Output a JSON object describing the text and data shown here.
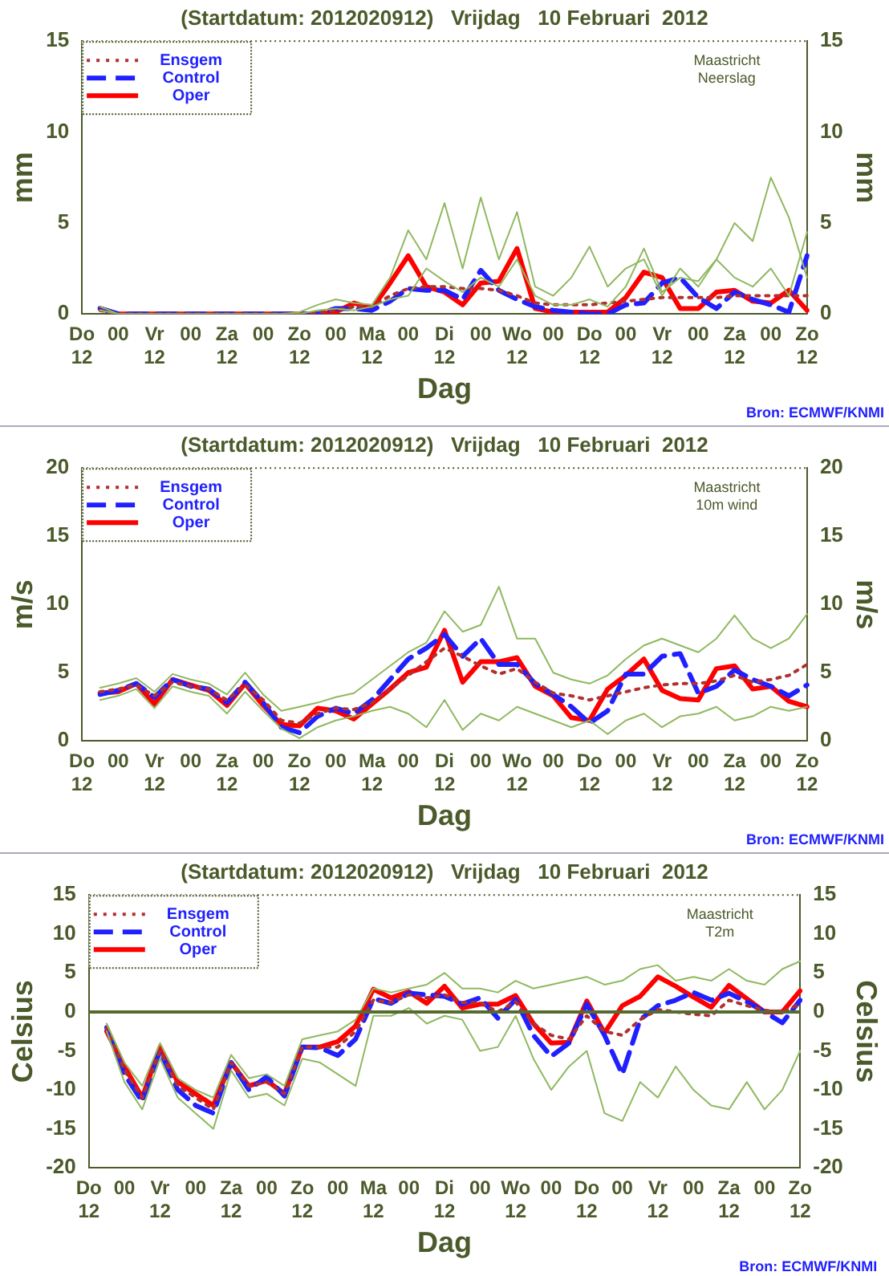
{
  "chart_data": [
    {
      "type": "line",
      "title": "(Startdatum: 2012020912)   Vrijdag   10 Februari  2012",
      "xlabel": "Dag",
      "ylabel": "mm",
      "y2label": "mm",
      "legend": "top left",
      "marker": "none",
      "annotations": [
        "Maastricht\nNeerslag",
        "Bron: ECMWF/KNMI"
      ],
      "categories": [
        "Do\n12",
        null,
        "00",
        null,
        "Vr\n12",
        null,
        "00",
        null,
        "Za\n12",
        null,
        "00",
        null,
        "Zo\n12",
        null,
        "00",
        null,
        "Ma\n12",
        null,
        "00",
        null,
        "Di\n12",
        null,
        "00",
        null,
        "Wo\n12",
        null,
        "00",
        null,
        "Do\n12",
        null,
        "00",
        null,
        "Vr\n12",
        null,
        "00",
        null,
        "Za\n12",
        null,
        "00",
        null,
        "Zo\n12"
      ],
      "ylim": [
        0,
        15
      ],
      "yticks": [
        0,
        5,
        10,
        15
      ],
      "y2lim": [
        0,
        15
      ],
      "y2ticks": [
        0,
        5,
        10,
        15
      ],
      "series": [
        {
          "color": "#90b860",
          "line_style": "solid",
          "values": [
            null,
            0.4,
            0,
            0,
            0,
            0,
            0,
            0,
            0,
            0,
            0,
            0,
            0.1,
            0.5,
            0.8,
            0.6,
            0.5,
            2.0,
            4.6,
            3.0,
            6.1,
            2.5,
            6.4,
            3.0,
            5.6,
            1.5,
            1.0,
            2.0,
            3.7,
            1.5,
            2.5,
            3.0,
            1.0,
            2.5,
            1.5,
            3.0,
            2.0,
            1.5,
            2.5,
            1.0,
            4.5
          ]
        },
        {
          "color": "#90b860",
          "line_style": "solid",
          "values": [
            null,
            0.2,
            0,
            0,
            0,
            0,
            0,
            0,
            0,
            0,
            0,
            0,
            0,
            0.2,
            0.3,
            0.2,
            0.4,
            0.8,
            1.0,
            2.5,
            1.8,
            1.2,
            2.0,
            1.5,
            3.0,
            1.0,
            0.5,
            0.5,
            0.8,
            0.4,
            1.5,
            3.6,
            1.2,
            2.0,
            1.8,
            3.0,
            5.0,
            4.0,
            7.5,
            5.3,
            2.0
          ]
        },
        {
          "name": "Ensgem",
          "color": "#b03030",
          "line_style": "dotted",
          "values": [
            null,
            0.2,
            0,
            0,
            0,
            0,
            0,
            0,
            0,
            0,
            0,
            0,
            0,
            0.1,
            0.2,
            0.4,
            0.4,
            1.0,
            1.4,
            1.5,
            1.5,
            1.4,
            1.4,
            1.3,
            1.0,
            0.6,
            0.5,
            0.5,
            0.5,
            0.6,
            0.7,
            0.8,
            0.9,
            0.9,
            0.9,
            0.9,
            1.0,
            1.0,
            1.0,
            1.0,
            1.0
          ]
        },
        {
          "name": "Control",
          "color": "#2020ff",
          "line_style": "dashed",
          "values": [
            null,
            0.3,
            0,
            0,
            0,
            0,
            0,
            0,
            0,
            0,
            0,
            0,
            0,
            0,
            0.3,
            0.3,
            0.2,
            0.7,
            1.4,
            1.3,
            1.3,
            0.8,
            2.4,
            1.3,
            0.8,
            0.4,
            0.2,
            0.1,
            0,
            0,
            0.5,
            0.6,
            1.7,
            2.0,
            0.9,
            0.3,
            1.2,
            0.8,
            0.5,
            0.1,
            3.2
          ]
        },
        {
          "name": "Oper",
          "color": "#ff0000",
          "line_style": "solid",
          "values": [
            null,
            0.3,
            0,
            0,
            0,
            0,
            0,
            0,
            0,
            0,
            0,
            0,
            0,
            0,
            0.1,
            0.6,
            0.3,
            1.7,
            3.2,
            1.5,
            1.2,
            0.5,
            1.7,
            1.8,
            3.6,
            0.3,
            0.1,
            0.1,
            0.1,
            0.1,
            0.9,
            2.3,
            2.0,
            0.3,
            0.3,
            1.2,
            1.3,
            0.7,
            0.6,
            1.3,
            0.2
          ]
        }
      ]
    },
    {
      "type": "line",
      "title": "(Startdatum: 2012020912)   Vrijdag   10 Februari  2012",
      "xlabel": "Dag",
      "ylabel": "m/s",
      "y2label": "m/s",
      "legend": "top left",
      "marker": "none",
      "annotations": [
        "Maastricht\n10m wind",
        "Bron: ECMWF/KNMI"
      ],
      "categories": [
        "Do\n12",
        null,
        "00",
        null,
        "Vr\n12",
        null,
        "00",
        null,
        "Za\n12",
        null,
        "00",
        null,
        "Zo\n12",
        null,
        "00",
        null,
        "Ma\n12",
        null,
        "00",
        null,
        "Di\n12",
        null,
        "00",
        null,
        "Wo\n12",
        null,
        "00",
        null,
        "Do\n12",
        null,
        "00",
        null,
        "Vr\n12",
        null,
        "00",
        null,
        "Za\n12",
        null,
        "00",
        null,
        "Zo\n12"
      ],
      "ylim": [
        0,
        20
      ],
      "yticks": [
        0,
        5,
        10,
        15,
        20
      ],
      "y2lim": [
        0,
        20
      ],
      "y2ticks": [
        0,
        5,
        10,
        15,
        20
      ],
      "series": [
        {
          "color": "#90b860",
          "line_style": "solid",
          "values": [
            null,
            3.9,
            4.2,
            4.6,
            3.6,
            4.9,
            4.5,
            4.2,
            3.4,
            5.0,
            3.4,
            2.2,
            2.5,
            2.8,
            3.2,
            3.5,
            4.5,
            5.5,
            6.5,
            7.2,
            9.5,
            8.0,
            8.5,
            11.3,
            7.5,
            7.5,
            5.0,
            4.5,
            4.2,
            4.8,
            6.0,
            7.0,
            7.5,
            7.0,
            6.5,
            7.5,
            9.2,
            7.5,
            6.8,
            7.5,
            9.3
          ]
        },
        {
          "color": "#90b860",
          "line_style": "solid",
          "values": [
            null,
            3.0,
            3.3,
            3.8,
            2.4,
            4.0,
            3.6,
            3.3,
            2.0,
            3.6,
            2.2,
            0.9,
            0.2,
            1.0,
            1.5,
            1.8,
            2.2,
            2.5,
            2.0,
            1.0,
            3.0,
            0.8,
            2.0,
            1.5,
            2.5,
            2.0,
            1.5,
            1.0,
            1.5,
            0.5,
            1.5,
            2.0,
            1.0,
            1.8,
            2.0,
            2.5,
            1.5,
            1.8,
            2.5,
            2.2,
            2.5
          ]
        },
        {
          "name": "Ensgem",
          "color": "#b03030",
          "line_style": "dotted",
          "values": [
            null,
            3.6,
            3.8,
            4.1,
            3.3,
            4.3,
            4.0,
            3.8,
            3.0,
            4.1,
            3.0,
            1.5,
            1.3,
            2.0,
            2.4,
            2.3,
            2.8,
            3.8,
            4.8,
            5.8,
            6.8,
            6.2,
            5.5,
            4.9,
            5.3,
            4.3,
            3.5,
            3.3,
            3.0,
            3.3,
            3.6,
            3.9,
            4.1,
            4.2,
            4.2,
            4.4,
            4.8,
            4.3,
            4.5,
            4.8,
            5.6
          ]
        },
        {
          "name": "Control",
          "color": "#2020ff",
          "line_style": "dashed",
          "values": [
            null,
            3.4,
            3.7,
            4.2,
            3.2,
            4.5,
            4.0,
            3.8,
            2.8,
            4.3,
            2.8,
            1.0,
            0.6,
            1.8,
            2.4,
            2.0,
            3.0,
            4.5,
            6.0,
            6.8,
            7.8,
            6.2,
            7.5,
            5.6,
            5.6,
            4.2,
            3.4,
            2.5,
            1.3,
            2.2,
            4.9,
            4.9,
            6.2,
            6.4,
            3.5,
            4.0,
            5.2,
            4.5,
            4.0,
            3.3,
            4.1
          ]
        },
        {
          "name": "Oper",
          "color": "#ff0000",
          "line_style": "solid",
          "values": [
            null,
            3.5,
            3.6,
            4.2,
            2.7,
            4.5,
            4.1,
            3.7,
            2.6,
            4.2,
            2.6,
            1.2,
            1.1,
            2.4,
            2.2,
            1.6,
            2.7,
            3.8,
            5.0,
            5.4,
            8.1,
            4.3,
            5.8,
            5.8,
            6.1,
            4.0,
            3.3,
            1.7,
            1.5,
            3.8,
            4.8,
            6.0,
            3.7,
            3.1,
            3.0,
            5.3,
            5.5,
            3.8,
            4.0,
            2.9,
            2.5
          ]
        }
      ]
    },
    {
      "type": "line",
      "title": "(Startdatum: 2012020912)   Vrijdag   10 Februari  2012",
      "xlabel": "Dag",
      "ylabel": "Celsius",
      "y2label": "Celsius",
      "legend": "top left",
      "marker": "none",
      "annotations": [
        "Maastricht\nT2m",
        "Bron: ECMWF/KNMI"
      ],
      "ref_lines": [
        {
          "axis": "y",
          "value": 0,
          "color": "#556b2f"
        }
      ],
      "categories": [
        "Do\n12",
        null,
        "00",
        null,
        "Vr\n12",
        null,
        "00",
        null,
        "Za\n12",
        null,
        "00",
        null,
        "Zo\n12",
        null,
        "00",
        null,
        "Ma\n12",
        null,
        "00",
        null,
        "Di\n12",
        null,
        "00",
        null,
        "Wo\n12",
        null,
        "00",
        null,
        "Do\n12",
        null,
        "00",
        null,
        "Vr\n12",
        null,
        "00",
        null,
        "Za\n12",
        null,
        "00",
        null,
        "Zo\n12"
      ],
      "ylim": [
        -20,
        15
      ],
      "yticks": [
        -20,
        -15,
        -10,
        -5,
        0,
        5,
        10,
        15
      ],
      "y2lim": [
        -20,
        15
      ],
      "y2ticks": [
        -20,
        -15,
        -10,
        -5,
        0,
        5,
        10,
        15
      ],
      "series": [
        {
          "color": "#90b860",
          "line_style": "solid",
          "values": [
            null,
            -1.5,
            -6.5,
            -9.5,
            -4.0,
            -8.5,
            -10,
            -11,
            -5.5,
            -8.5,
            -8,
            -9.5,
            -3.5,
            -3.0,
            -2.5,
            -1.0,
            3.0,
            2.5,
            3.0,
            3.5,
            5.0,
            3.0,
            3.0,
            2.5,
            4.0,
            3.0,
            3.5,
            4.0,
            4.5,
            3.5,
            4.0,
            5.5,
            6.0,
            4.0,
            4.5,
            4.0,
            5.5,
            4.0,
            3.5,
            5.5,
            6.5
          ]
        },
        {
          "color": "#90b860",
          "line_style": "solid",
          "values": [
            null,
            -2.5,
            -9,
            -12.5,
            -6,
            -11,
            -13,
            -15,
            -7.5,
            -11,
            -10.5,
            -12,
            -6,
            -6.5,
            -8,
            -9.5,
            -0.5,
            -0.5,
            0.5,
            -1.5,
            -0.5,
            -1.0,
            -5,
            -4.5,
            -0.5,
            -6,
            -10,
            -7,
            -5,
            -13,
            -14,
            -9,
            -11,
            -7,
            -10,
            -12,
            -12.5,
            -9,
            -12.5,
            -10,
            -5
          ]
        },
        {
          "name": "Ensgem",
          "color": "#b03030",
          "line_style": "dotted",
          "values": [
            null,
            -2,
            -7.5,
            -11,
            -5,
            -9.5,
            -11,
            -12.5,
            -6.5,
            -9.5,
            -9,
            -10.5,
            -4.5,
            -4.5,
            -4.5,
            -2.5,
            1.5,
            1.2,
            2.2,
            1.8,
            2.2,
            1.2,
            1.2,
            0.0,
            1.3,
            -1.5,
            -3,
            -3.5,
            -0.5,
            -2.5,
            -3,
            -1,
            0.3,
            0.0,
            -0.3,
            -0.5,
            1.5,
            0.8,
            0.2,
            0.0,
            1.0
          ]
        },
        {
          "name": "Control",
          "color": "#2020ff",
          "line_style": "dashed",
          "values": [
            null,
            -2,
            -8,
            -11.5,
            -5,
            -10,
            -12,
            -13,
            -6.5,
            -10,
            -8.3,
            -10.8,
            -4.5,
            -4.6,
            -5.6,
            -3.5,
            1.7,
            1.1,
            2.4,
            2.2,
            2.0,
            1.0,
            1.8,
            -0.8,
            1.6,
            -3,
            -5.7,
            -4,
            1.0,
            -3,
            -8,
            -1,
            0.8,
            1.5,
            2.5,
            1.5,
            2.4,
            1.3,
            0.0,
            -1.4,
            1.5
          ]
        },
        {
          "name": "Oper",
          "color": "#ff0000",
          "line_style": "solid",
          "values": [
            null,
            -2.5,
            -7,
            -11,
            -4.5,
            -9,
            -10.5,
            -12,
            -6.5,
            -9.5,
            -8.8,
            -10.5,
            -4.5,
            -4.5,
            -3.8,
            -1.8,
            2.9,
            1.8,
            2.6,
            1.1,
            3.3,
            0.5,
            1.0,
            1.0,
            2.1,
            -1.5,
            -4.0,
            -3.9,
            1.4,
            -2.7,
            0.8,
            2.0,
            4.5,
            3.3,
            1.9,
            0.6,
            3.4,
            1.7,
            0.0,
            0.0,
            2.7
          ]
        }
      ]
    }
  ]
}
